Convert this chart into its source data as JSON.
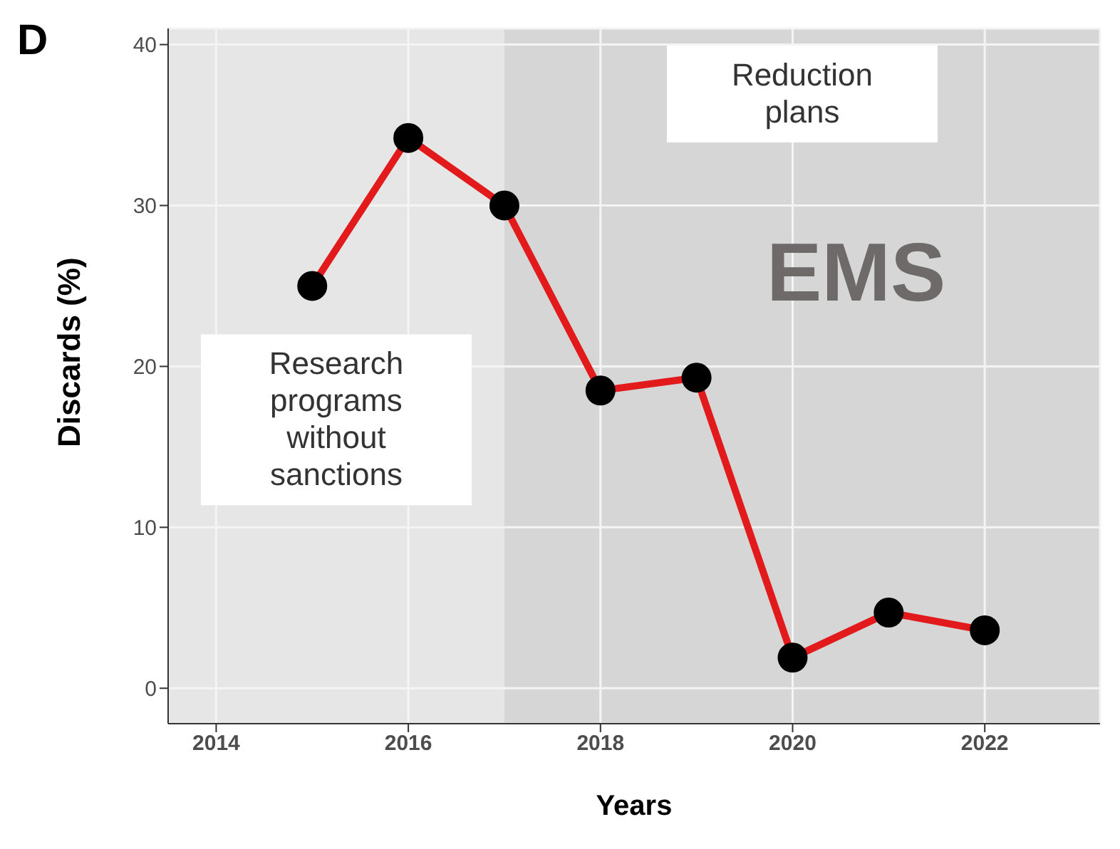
{
  "chart_data": {
    "type": "line",
    "title": "D",
    "xlabel": "Years",
    "ylabel": "Discards (%)",
    "x": [
      2015,
      2016,
      2017,
      2018,
      2019,
      2020,
      2021,
      2022
    ],
    "series": [
      {
        "color": "#e31a1c",
        "values": [
          25,
          34.2,
          30,
          18.5,
          19.3,
          1.9,
          4.7,
          3.6
        ]
      }
    ],
    "xlim": [
      2013.5,
      2023.2
    ],
    "xticks": [
      2014,
      2016,
      2018,
      2020,
      2022
    ],
    "ylim": [
      -2.2,
      41
    ],
    "yticks": [
      0,
      10,
      20,
      30,
      40
    ],
    "bands": [
      {
        "axis": "x",
        "from": 2013.5,
        "to": 2017,
        "label": "Research programs without sanctions",
        "color": "#e6e6e6"
      },
      {
        "axis": "x",
        "from": 2017,
        "to": 2023.2,
        "label": "Reduction plans",
        "color": "#d6d6d6"
      }
    ],
    "annotations": [
      "EMS"
    ],
    "grid": true,
    "marker": "circle",
    "line_style": "solid"
  }
}
